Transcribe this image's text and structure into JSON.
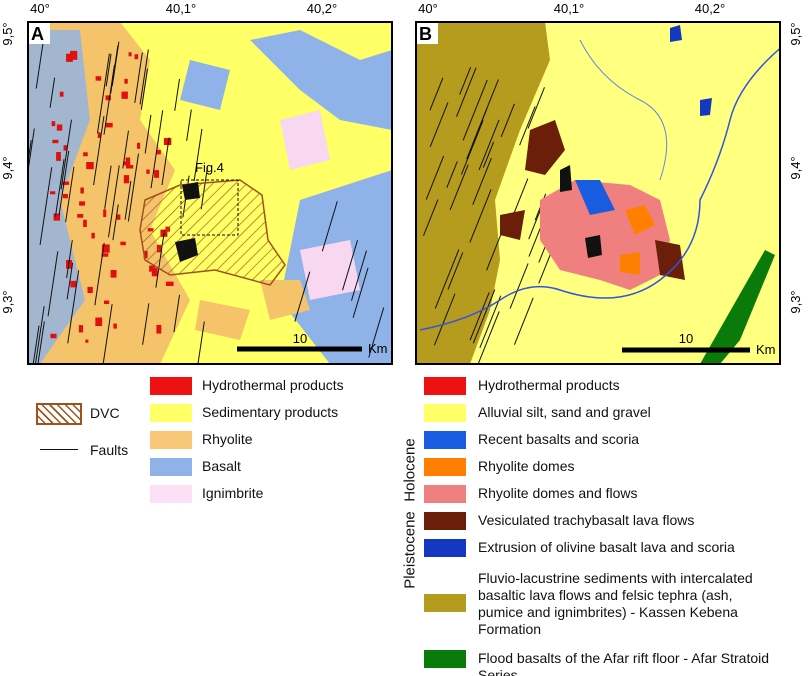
{
  "panel_a": {
    "label": "A",
    "lon_labels": [
      "40°",
      "40,1°",
      "40,2°"
    ],
    "lat_labels": [
      "9,5°",
      "9,4°",
      "9,3°"
    ],
    "inset_label": "Fig.4",
    "scale_value": "10",
    "scale_unit": "Km"
  },
  "panel_b": {
    "label": "B",
    "lon_labels": [
      "40°",
      "40,1°",
      "40,2°"
    ],
    "lat_labels": [
      "9,5°",
      "9,4°",
      "9,3°"
    ],
    "scale_value": "10",
    "scale_unit": "Km"
  },
  "legend_a": {
    "symbols": [
      "DVC",
      "Faults"
    ],
    "units": [
      "Hydrothermal products",
      "Sedimentary products",
      "Rhyolite",
      "Basalt",
      "Ignimbrite"
    ]
  },
  "legend_b": {
    "epochs": [
      "Holocene",
      "Pleistocene"
    ],
    "units": [
      [
        "Hydrothermal products"
      ],
      [
        "Alluvial silt, sand and gravel"
      ],
      [
        "Recent basalts and scoria"
      ],
      [
        "Rhyolite domes"
      ],
      [
        "Rhyolite domes and flows"
      ],
      [
        "Vesiculated trachybasalt lava flows"
      ],
      [
        "Extrusion of olivine basalt lava and scoria"
      ],
      [
        "Fluvio-lacustrine sediments with intercalated",
        "basaltic lava flows and  felsic tephra (ash,",
        "pumice and ignimbrites) - Kassen Kebena",
        "Formation"
      ],
      [
        "Flood basalts of the Afar rift floor - Afar Stratoid",
        "Series"
      ]
    ]
  }
}
